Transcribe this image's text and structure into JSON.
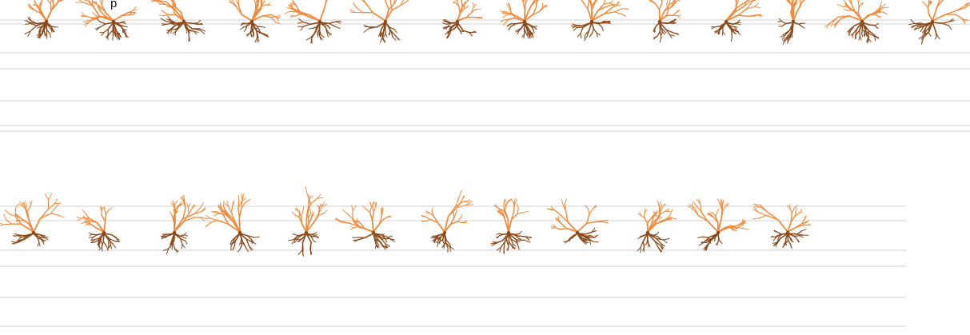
{
  "rows": [
    {
      "name": "top",
      "caption": "p",
      "neuron_count": 14,
      "line_color": "#d9d9d9"
    },
    {
      "name": "bottom",
      "caption": "",
      "neuron_count": 12,
      "line_color": "#d9d9d9"
    }
  ],
  "colors": {
    "apical_dendrite": "#f08a3c",
    "basal_dendrite": "#8b4a1c",
    "background": "#ffffff"
  }
}
